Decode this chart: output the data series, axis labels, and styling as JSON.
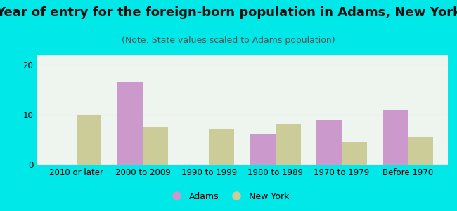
{
  "title": "Year of entry for the foreign-born population in Adams, New York",
  "subtitle": "(Note: State values scaled to Adams population)",
  "categories": [
    "2010 or later",
    "2000 to 2009",
    "1990 to 1999",
    "1980 to 1989",
    "1970 to 1979",
    "Before 1970"
  ],
  "adams_values": [
    0,
    16.5,
    0,
    6,
    9,
    11
  ],
  "newyork_values": [
    10,
    7.5,
    7,
    8,
    4.5,
    5.5
  ],
  "adams_color": "#cc99cc",
  "newyork_color": "#cccc99",
  "background_outer": "#00e8e8",
  "background_inner": "#eef5ee",
  "ylim": [
    0,
    22
  ],
  "yticks": [
    0,
    10,
    20
  ],
  "bar_width": 0.38,
  "legend_adams": "Adams",
  "legend_newyork": "New York",
  "grid_color": "#cccccc",
  "title_fontsize": 13,
  "subtitle_fontsize": 9,
  "axis_fontsize": 8.5
}
